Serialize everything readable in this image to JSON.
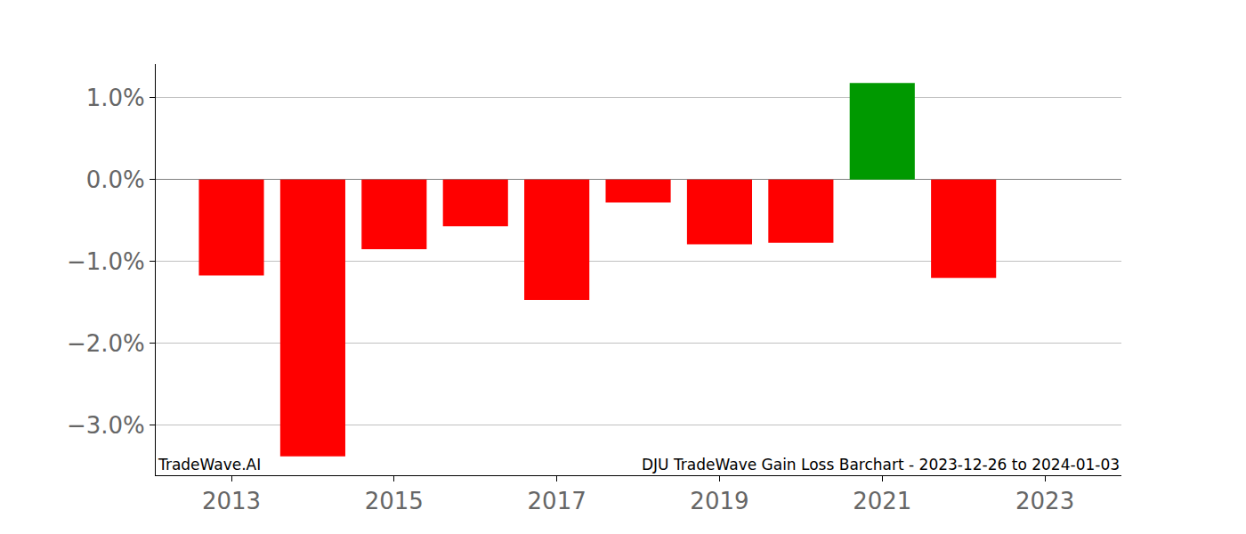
{
  "chart_data": {
    "type": "bar",
    "x": [
      2013,
      2014,
      2015,
      2016,
      2017,
      2018,
      2019,
      2020,
      2021,
      2022
    ],
    "values": [
      -1.17,
      -3.38,
      -0.85,
      -0.57,
      -1.47,
      -0.28,
      -0.79,
      -0.77,
      1.18,
      -1.2
    ],
    "colors": [
      "#ff0000",
      "#ff0000",
      "#ff0000",
      "#ff0000",
      "#ff0000",
      "#ff0000",
      "#ff0000",
      "#ff0000",
      "#009900",
      "#ff0000"
    ],
    "xlim": [
      2012.07,
      2023.94
    ],
    "xticks": [
      2013,
      2015,
      2017,
      2019,
      2021,
      2023
    ],
    "ylim": [
      -3.61,
      1.41
    ],
    "yticks": [
      {
        "value": -3.0,
        "label": "−3.0%"
      },
      {
        "value": -2.0,
        "label": "−2.0%"
      },
      {
        "value": -1.0,
        "label": "−1.0%"
      },
      {
        "value": 0.0,
        "label": "0.0%"
      },
      {
        "value": 1.0,
        "label": "1.0%"
      }
    ],
    "grid": "y",
    "annotations": [
      "TradeWave.AI",
      "DJU TradeWave Gain Loss Barchart - 2023-12-26 to 2024-01-03"
    ]
  }
}
